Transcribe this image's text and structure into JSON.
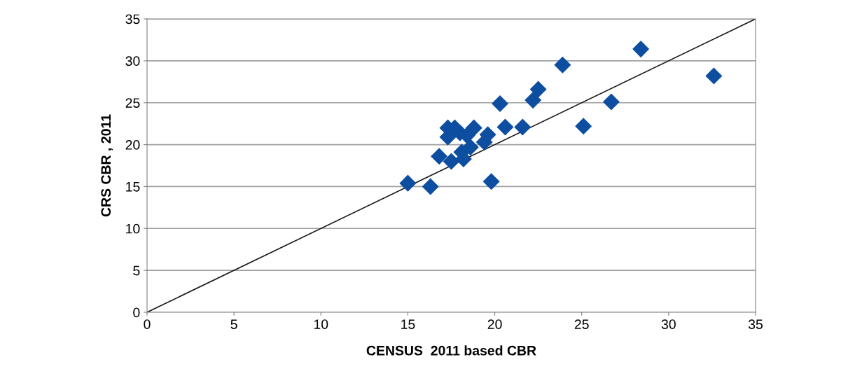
{
  "chart_data": {
    "type": "scatter",
    "xlabel": "CENSUS  2011 based CBR",
    "ylabel": "CRS CBR , 2011",
    "xlim": [
      0,
      35
    ],
    "ylim": [
      0,
      35
    ],
    "xticks": [
      0,
      5,
      10,
      15,
      20,
      25,
      30,
      35
    ],
    "yticks": [
      0,
      5,
      10,
      15,
      20,
      25,
      30,
      35
    ],
    "grid": "y",
    "marker": "diamond",
    "series": [
      {
        "color": "#0d4ea0",
        "x": [
          15.0,
          16.3,
          16.8,
          17.3,
          17.3,
          17.5,
          17.7,
          18.0,
          18.1,
          18.2,
          18.4,
          18.6,
          18.8,
          19.4,
          19.6,
          19.8,
          20.3,
          20.6,
          21.6,
          22.2,
          22.5,
          23.9,
          25.1,
          26.7,
          28.4,
          32.6
        ],
        "values": [
          15.4,
          15.0,
          18.6,
          22.0,
          20.9,
          18.0,
          22.0,
          21.4,
          19.1,
          18.3,
          21.1,
          19.7,
          22.0,
          20.3,
          21.2,
          15.6,
          24.9,
          22.1,
          22.1,
          25.3,
          26.6,
          29.5,
          22.2,
          25.1,
          31.4,
          28.2
        ]
      },
      {
        "type": "line",
        "color": "#1a1a1a",
        "x": [
          0,
          35
        ],
        "values": [
          0,
          35
        ],
        "marker": "none"
      }
    ]
  }
}
